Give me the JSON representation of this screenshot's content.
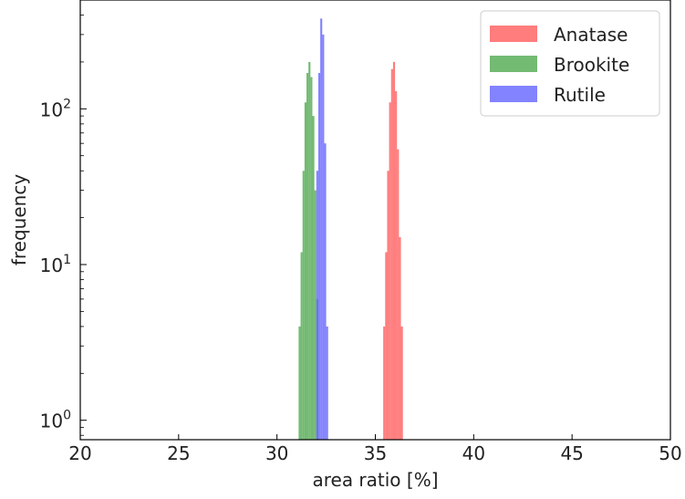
{
  "chart_data": {
    "type": "bar",
    "title": "",
    "xlabel": "area ratio [%]",
    "ylabel": "frequency",
    "xlim": [
      20,
      50
    ],
    "ylim": [
      0.75,
      500
    ],
    "yscale": "log",
    "grid": false,
    "legend_position": "top-right",
    "x_ticks": [
      {
        "value": 20,
        "label": "20"
      },
      {
        "value": 25,
        "label": "25"
      },
      {
        "value": 30,
        "label": "30"
      },
      {
        "value": 35,
        "label": "35"
      },
      {
        "value": 40,
        "label": "40"
      },
      {
        "value": 45,
        "label": "45"
      },
      {
        "value": 50,
        "label": "50"
      }
    ],
    "y_ticks": [
      {
        "value": 1,
        "base": "10",
        "exp": "0"
      },
      {
        "value": 10,
        "base": "10",
        "exp": "1"
      },
      {
        "value": 100,
        "base": "10",
        "exp": "2"
      }
    ],
    "series": [
      {
        "name": "Anatase",
        "color": "#ff6666",
        "opacity": 0.85,
        "bin_edges": [
          35.4,
          35.5,
          35.6,
          35.7,
          35.8,
          35.9,
          36.0,
          36.1,
          36.2,
          36.3,
          36.4
        ],
        "counts": [
          4,
          12,
          40,
          110,
          180,
          200,
          130,
          55,
          15,
          4
        ]
      },
      {
        "name": "Brookite",
        "color": "#5aae5a",
        "opacity": 0.85,
        "bin_edges": [
          31.1,
          31.2,
          31.3,
          31.4,
          31.5,
          31.6,
          31.7,
          31.8,
          31.9,
          32.0,
          32.1
        ],
        "counts": [
          4,
          12,
          40,
          110,
          170,
          200,
          160,
          90,
          30,
          6
        ]
      },
      {
        "name": "Rutile",
        "color": "#6464ff",
        "opacity": 0.8,
        "bin_edges": [
          32.0,
          32.1,
          32.2,
          32.3,
          32.4,
          32.5,
          32.6
        ],
        "counts": [
          40,
          170,
          380,
          300,
          60,
          4
        ]
      }
    ]
  }
}
